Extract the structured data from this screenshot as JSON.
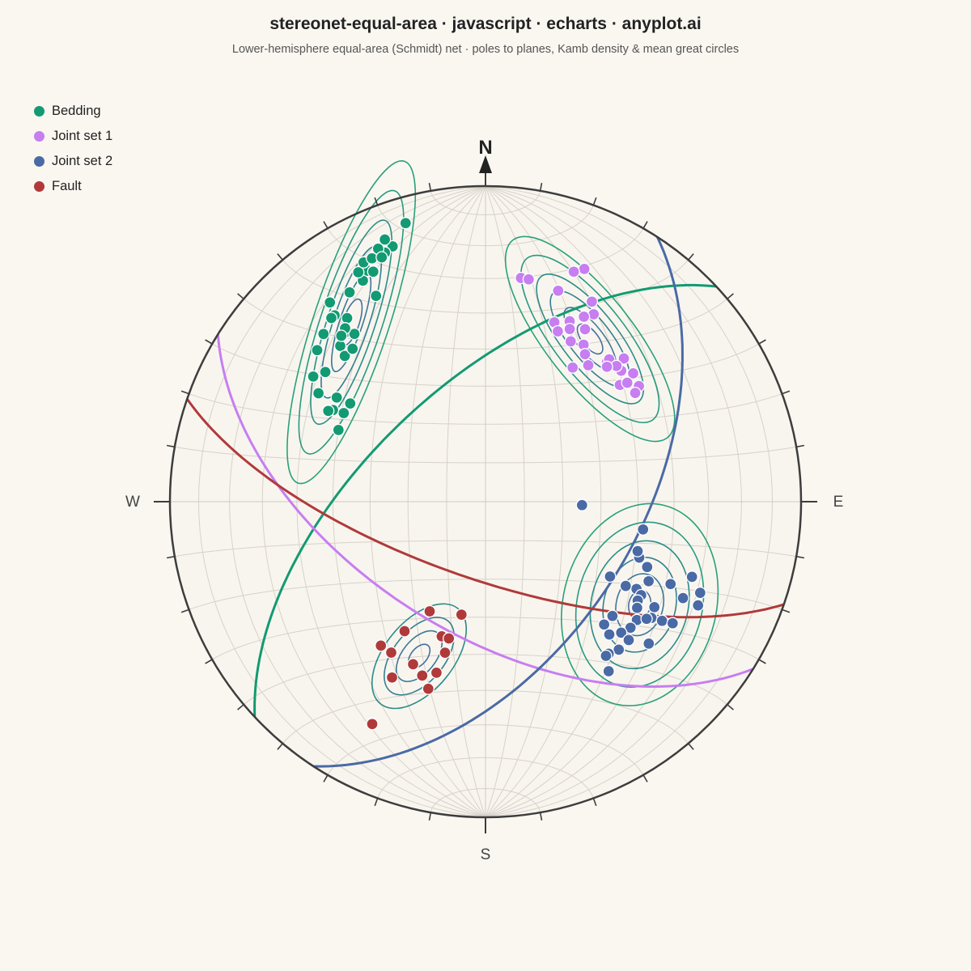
{
  "title": "stereonet-equal-area · javascript · echarts · anyplot.ai",
  "subtitle": "Lower-hemisphere equal-area (Schmidt) net · poles to planes, Kamb density & mean great circles",
  "legend": [
    {
      "name": "Bedding",
      "color": "#139a72"
    },
    {
      "name": "Joint set 1",
      "color": "#c77ef0"
    },
    {
      "name": "Joint set 2",
      "color": "#4a6aa5"
    },
    {
      "name": "Fault",
      "color": "#b03a3a"
    }
  ],
  "directions": {
    "n": "N",
    "s": "S",
    "e": "E",
    "w": "W"
  },
  "chart_data": {
    "type": "scatter",
    "projection": "lower-hemisphere equal-area (Schmidt)",
    "units": "trend (degrees azimuth), plunge (degrees)",
    "grid": true,
    "legend_position": "top-left",
    "series": [
      {
        "name": "Bedding",
        "kind": "poles",
        "color": "#139a72",
        "points": [
          [
            303,
            37
          ],
          [
            306,
            33
          ],
          [
            301,
            43
          ],
          [
            302,
            46
          ],
          [
            306,
            46
          ],
          [
            296,
            47
          ],
          [
            309,
            35
          ],
          [
            300,
            42
          ],
          [
            305,
            42
          ],
          [
            312,
            29
          ],
          [
            316,
            27
          ],
          [
            317,
            33
          ],
          [
            316,
            36
          ],
          [
            320,
            31
          ],
          [
            323,
            28
          ],
          [
            322,
            33
          ],
          [
            321,
            30
          ],
          [
            319,
            31
          ],
          [
            319,
            36
          ],
          [
            321,
            25
          ],
          [
            322,
            21
          ],
          [
            327,
            22
          ],
          [
            320,
            25
          ],
          [
            331,
            21
          ],
          [
            333,
            19
          ],
          [
            332,
            27
          ],
          [
            331,
            18
          ],
          [
            334,
            20
          ],
          [
            340,
            15
          ],
          [
            333,
            16
          ],
          [
            338,
            16
          ],
          [
            335,
            16
          ],
          [
            339,
            12
          ],
          [
            344,
            9
          ],
          [
            337,
            14
          ],
          [
            337,
            17
          ]
        ]
      },
      {
        "name": "Joint set 1",
        "kind": "poles",
        "color": "#c77ef0",
        "points": [
          [
            9,
            29
          ],
          [
            11,
            29
          ],
          [
            23,
            21
          ],
          [
            21,
            23
          ],
          [
            19,
            30
          ],
          [
            28,
            29
          ],
          [
            30,
            32
          ],
          [
            21,
            39
          ],
          [
            23,
            41
          ],
          [
            25,
            37
          ],
          [
            28,
            34
          ],
          [
            26,
            39
          ],
          [
            28,
            42
          ],
          [
            30,
            37
          ],
          [
            32,
            41
          ],
          [
            37,
            45
          ],
          [
            34,
            43
          ],
          [
            33,
            48
          ],
          [
            41,
            41
          ],
          [
            41,
            40
          ],
          [
            44,
            37
          ],
          [
            46,
            40
          ],
          [
            44,
            40
          ],
          [
            42,
            42
          ],
          [
            49,
            43
          ],
          [
            53,
            39
          ],
          [
            54,
            41
          ],
          [
            49,
            38
          ],
          [
            50,
            41
          ]
        ]
      },
      {
        "name": "Joint set 2",
        "kind": "poles",
        "color": "#4a6aa5",
        "points": [
          [
            100,
            48
          ],
          [
            110,
            47
          ],
          [
            108,
            48
          ],
          [
            114,
            36
          ],
          [
            112,
            44
          ],
          [
            120,
            44
          ],
          [
            116,
            42
          ],
          [
            121,
            47
          ],
          [
            121,
            42
          ],
          [
            122,
            37
          ],
          [
            123,
            42
          ],
          [
            125,
            36
          ],
          [
            128,
            39
          ],
          [
            125,
            41
          ],
          [
            131,
            39
          ],
          [
            132,
            45
          ],
          [
            134,
            40
          ],
          [
            134,
            37
          ],
          [
            136,
            45
          ],
          [
            138,
            37
          ],
          [
            137,
            42
          ],
          [
            141,
            38
          ],
          [
            142,
            38
          ],
          [
            144,
            34
          ],
          [
            124,
            33
          ],
          [
            123,
            30
          ],
          [
            116,
            26
          ],
          [
            116,
            31
          ],
          [
            113,
            27
          ],
          [
            110,
            31
          ],
          [
            121,
            52
          ],
          [
            92,
            65
          ],
          [
            131,
            32
          ],
          [
            126,
            37
          ]
        ]
      },
      {
        "name": "Fault",
        "kind": "poles",
        "color": "#b03a3a",
        "points": [
          [
            212,
            43
          ],
          [
            216,
            43
          ],
          [
            207,
            22
          ],
          [
            208,
            37
          ],
          [
            212,
            50
          ],
          [
            197,
            38
          ],
          [
            196,
            43
          ],
          [
            195,
            49
          ],
          [
            200,
            41
          ],
          [
            198,
            53
          ],
          [
            207,
            58
          ],
          [
            204,
            43
          ],
          [
            195,
            53
          ],
          [
            192,
            60
          ]
        ]
      }
    ],
    "mean_great_circles": [
      {
        "name": "Bedding",
        "strike": 227,
        "dip": 60
      },
      {
        "name": "Joint set 1",
        "strike": 122,
        "dip": 56
      },
      {
        "name": "Joint set 2",
        "strike": 33,
        "dip": 51
      },
      {
        "name": "Fault",
        "strike": 109,
        "dip": 70
      }
    ],
    "density_contours": "Kamb"
  }
}
